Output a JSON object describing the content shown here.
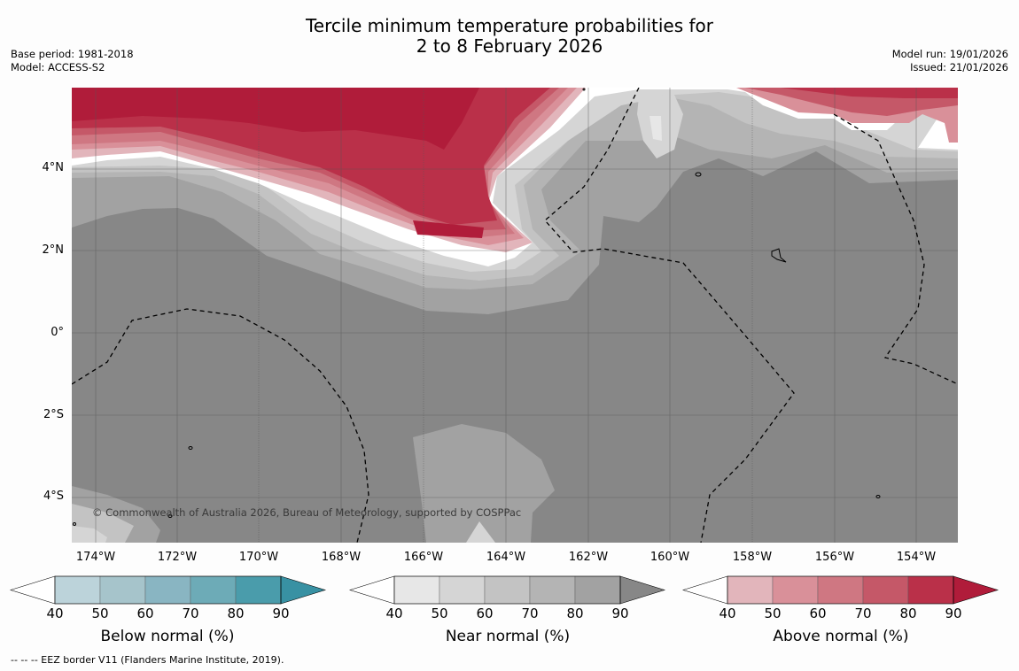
{
  "title_line1": "Tercile minimum temperature probabilities for",
  "title_line2": "2 to 8 February 2026",
  "base_period": "Base period: 1981-2018",
  "model": "Model: ACCESS-S2",
  "model_run": "Model run: 19/01/2026",
  "issued": "Issued: 21/01/2026",
  "copyright": "© Commonwealth of Australia 2026, Bureau of Meteorology, supported by COSPPac",
  "lat_labels": [
    "4°N",
    "2°N",
    "0°",
    "2°S",
    "4°S"
  ],
  "lon_labels": [
    "174°W",
    "172°W",
    "170°W",
    "168°W",
    "166°W",
    "164°W",
    "162°W",
    "160°W",
    "158°W",
    "156°W",
    "154°W"
  ],
  "colorbars": [
    {
      "label": "Below normal (%)",
      "colors": [
        "#bcd3da",
        "#a6c4cb",
        "#89b5c2",
        "#6dabb7",
        "#4a9cab",
        "#3891a3"
      ]
    },
    {
      "label": "Near normal (%)",
      "colors": [
        "#e7e7e7",
        "#d5d5d5",
        "#c3c3c3",
        "#b4b4b4",
        "#a2a2a2",
        "#878787"
      ]
    },
    {
      "label": "Above normal (%)",
      "colors": [
        "#e2b5bb",
        "#d99099",
        "#cf7782",
        "#c55868",
        "#ba3049",
        "#b01c3a"
      ]
    }
  ],
  "ticks": [
    "40",
    "50",
    "60",
    "70",
    "80",
    "90"
  ],
  "footnote": "--  --  -- EEZ border V11 (Flanders Marine Institute, 2019)."
}
